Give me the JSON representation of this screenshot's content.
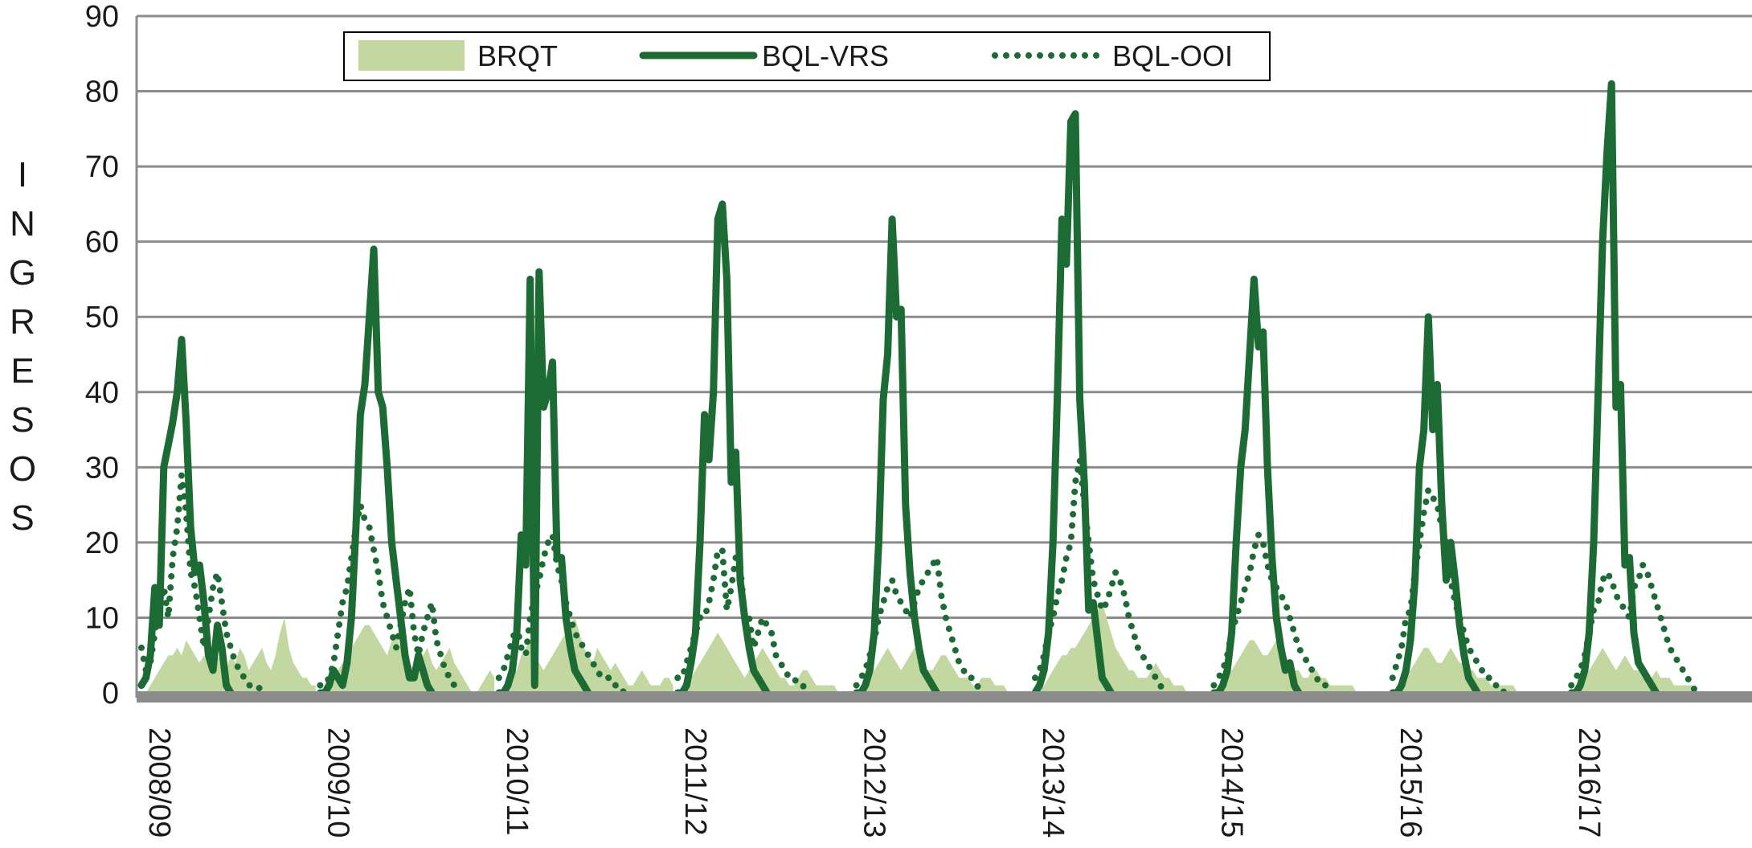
{
  "chart_data": {
    "type": "line",
    "title": "",
    "xlabel": "",
    "ylabel": "INGRESOS",
    "ylim": [
      0,
      90
    ],
    "yticks": [
      0,
      10,
      20,
      30,
      40,
      50,
      60,
      70,
      80,
      90
    ],
    "grid": true,
    "legend_position": "top",
    "seasons": [
      "2008/09",
      "2009/10",
      "2010/11",
      "2011/12",
      "2012/13",
      "2013/14",
      "2014/15",
      "2015/16",
      "2016/17"
    ],
    "weeks_per_season": 40,
    "series": [
      {
        "name": "BRQT",
        "style": "area",
        "color": "#c2d8a0",
        "values": [
          [
            0,
            0,
            1,
            2,
            3,
            4,
            5,
            5,
            6,
            5,
            7,
            6,
            5,
            4,
            5,
            4,
            6,
            5,
            4,
            3,
            5,
            4,
            6,
            5,
            3,
            4,
            5,
            6,
            4,
            3,
            5,
            8,
            10,
            6,
            4,
            3,
            2,
            2,
            1,
            1
          ],
          [
            0,
            0,
            1,
            2,
            3,
            4,
            5,
            6,
            7,
            8,
            9,
            9,
            8,
            7,
            6,
            5,
            7,
            8,
            6,
            5,
            4,
            3,
            4,
            5,
            6,
            4,
            3,
            4,
            5,
            6,
            4,
            3,
            2,
            1,
            0,
            0,
            1,
            2,
            3,
            2
          ],
          [
            0,
            0,
            1,
            2,
            3,
            5,
            6,
            7,
            5,
            4,
            3,
            4,
            5,
            6,
            7,
            8,
            9,
            10,
            8,
            6,
            5,
            4,
            6,
            5,
            4,
            3,
            4,
            3,
            2,
            1,
            1,
            2,
            3,
            2,
            1,
            1,
            1,
            2,
            2,
            1
          ],
          [
            0,
            0,
            1,
            2,
            3,
            4,
            5,
            6,
            7,
            8,
            7,
            6,
            5,
            4,
            3,
            2,
            3,
            4,
            5,
            6,
            5,
            4,
            3,
            2,
            2,
            1,
            1,
            2,
            3,
            3,
            2,
            1,
            1,
            1,
            1,
            1,
            0,
            0,
            0,
            0
          ],
          [
            0,
            0,
            1,
            2,
            3,
            4,
            5,
            6,
            5,
            4,
            3,
            4,
            5,
            6,
            5,
            4,
            3,
            3,
            4,
            5,
            5,
            4,
            3,
            2,
            2,
            2,
            1,
            1,
            2,
            2,
            2,
            1,
            1,
            1,
            0,
            0,
            0,
            0,
            0,
            0
          ],
          [
            0,
            0,
            1,
            2,
            3,
            4,
            5,
            5,
            6,
            6,
            7,
            8,
            9,
            10,
            11,
            12,
            10,
            8,
            6,
            5,
            4,
            3,
            3,
            2,
            2,
            2,
            3,
            4,
            3,
            2,
            2,
            1,
            1,
            1,
            0,
            0,
            0,
            0,
            0,
            0
          ],
          [
            0,
            0,
            1,
            2,
            3,
            4,
            5,
            6,
            7,
            7,
            6,
            5,
            5,
            6,
            7,
            6,
            5,
            4,
            3,
            3,
            2,
            2,
            3,
            3,
            2,
            2,
            1,
            1,
            1,
            1,
            1,
            1,
            0,
            0,
            0,
            0,
            0,
            0,
            0,
            0
          ],
          [
            0,
            0,
            1,
            2,
            3,
            4,
            5,
            6,
            6,
            5,
            4,
            4,
            5,
            6,
            5,
            4,
            4,
            3,
            3,
            2,
            2,
            2,
            1,
            1,
            1,
            1,
            1,
            1,
            0,
            0,
            0,
            0,
            0,
            0,
            0,
            0,
            0,
            0,
            0,
            0
          ],
          [
            0,
            0,
            1,
            2,
            3,
            4,
            5,
            6,
            5,
            4,
            3,
            4,
            5,
            4,
            3,
            3,
            2,
            2,
            2,
            3,
            2,
            2,
            2,
            1,
            1,
            1,
            1,
            1,
            0,
            0,
            0,
            0,
            0,
            0,
            0,
            0,
            0,
            0,
            0,
            0
          ]
        ]
      },
      {
        "name": "BQL-VRS",
        "style": "solid",
        "color": "#1d6b34",
        "values": [
          [
            1,
            2,
            5,
            14,
            9,
            30,
            33,
            36,
            40,
            47,
            36,
            22,
            16,
            17,
            12,
            5,
            3,
            9,
            6,
            1,
            0,
            0,
            0,
            0,
            0,
            0,
            0,
            0,
            0,
            0,
            0,
            0,
            0,
            0,
            0,
            0,
            0,
            0,
            0,
            0
          ],
          [
            0,
            0,
            1,
            3,
            2,
            1,
            4,
            10,
            22,
            37,
            41,
            50,
            59,
            40,
            38,
            30,
            20,
            15,
            10,
            5,
            2,
            2,
            5,
            3,
            1,
            0,
            0,
            0,
            0,
            0,
            0,
            0,
            0,
            0,
            0,
            0,
            0,
            0,
            0,
            0
          ],
          [
            0,
            0,
            1,
            3,
            8,
            21,
            17,
            55,
            1,
            56,
            38,
            40,
            44,
            18,
            18,
            10,
            6,
            3,
            2,
            1,
            0,
            0,
            0,
            0,
            0,
            0,
            0,
            0,
            0,
            0,
            0,
            0,
            0,
            0,
            0,
            0,
            0,
            0,
            0,
            0
          ],
          [
            0,
            0,
            1,
            4,
            8,
            20,
            37,
            31,
            40,
            63,
            65,
            55,
            28,
            32,
            15,
            10,
            6,
            3,
            2,
            1,
            0,
            0,
            0,
            0,
            0,
            0,
            0,
            0,
            0,
            0,
            0,
            0,
            0,
            0,
            0,
            0,
            0,
            0,
            0,
            0
          ],
          [
            0,
            0,
            1,
            3,
            8,
            20,
            39,
            45,
            63,
            50,
            51,
            25,
            16,
            10,
            6,
            3,
            2,
            1,
            0,
            0,
            0,
            0,
            0,
            0,
            0,
            0,
            0,
            0,
            0,
            0,
            0,
            0,
            0,
            0,
            0,
            0,
            0,
            0,
            0,
            0
          ],
          [
            0,
            1,
            3,
            8,
            20,
            40,
            63,
            57,
            76,
            77,
            39,
            28,
            11,
            12,
            7,
            2,
            1,
            0,
            0,
            0,
            0,
            0,
            0,
            0,
            0,
            0,
            0,
            0,
            0,
            0,
            0,
            0,
            0,
            0,
            0,
            0,
            0,
            0,
            0,
            0
          ],
          [
            0,
            0,
            1,
            3,
            8,
            20,
            30,
            35,
            45,
            55,
            46,
            48,
            30,
            18,
            10,
            6,
            3,
            4,
            1,
            0,
            0,
            0,
            0,
            0,
            0,
            0,
            0,
            0,
            0,
            0,
            0,
            0,
            0,
            0,
            0,
            0,
            0,
            0,
            0,
            0
          ],
          [
            0,
            0,
            1,
            3,
            7,
            15,
            30,
            35,
            50,
            35,
            41,
            25,
            15,
            20,
            15,
            9,
            5,
            2,
            1,
            0,
            0,
            0,
            0,
            0,
            0,
            0,
            0,
            0,
            0,
            0,
            0,
            0,
            0,
            0,
            0,
            0,
            0,
            0,
            0,
            0
          ],
          [
            0,
            0,
            1,
            3,
            8,
            20,
            40,
            60,
            72,
            81,
            38,
            41,
            17,
            18,
            8,
            4,
            3,
            2,
            1,
            0,
            0,
            0,
            0,
            0,
            0,
            0,
            0,
            0,
            0,
            0,
            0,
            0,
            0,
            0,
            0,
            0,
            0,
            0,
            0,
            0
          ]
        ]
      },
      {
        "name": "BQL-OOI",
        "style": "dotted",
        "color": "#1d6b34",
        "values": [
          [
            6,
            3,
            4,
            8,
            12,
            14,
            10,
            18,
            22,
            29,
            24,
            16,
            14,
            10,
            6,
            10,
            14,
            16,
            12,
            8,
            6,
            4,
            3,
            2,
            1,
            1,
            1,
            0,
            0,
            0,
            0,
            0,
            0,
            0,
            0,
            0,
            0,
            0,
            0,
            0
          ],
          [
            1,
            1,
            2,
            4,
            8,
            12,
            14,
            18,
            22,
            25,
            23,
            22,
            19,
            16,
            12,
            10,
            8,
            6,
            9,
            12,
            14,
            8,
            5,
            8,
            10,
            12,
            7,
            5,
            3,
            2,
            1,
            0,
            0,
            0,
            0,
            0,
            0,
            0,
            0,
            0
          ],
          [
            2,
            3,
            5,
            7,
            9,
            6,
            5,
            10,
            13,
            15,
            18,
            20,
            21,
            17,
            15,
            12,
            10,
            8,
            7,
            6,
            5,
            4,
            3,
            2,
            2,
            2,
            1,
            1,
            0,
            0,
            0,
            0,
            0,
            0,
            0,
            0,
            0,
            0,
            0,
            0
          ],
          [
            2,
            2,
            4,
            6,
            8,
            10,
            10,
            12,
            15,
            19,
            19,
            11,
            14,
            18,
            17,
            10,
            10,
            6,
            8,
            10,
            9,
            8,
            5,
            4,
            3,
            2,
            2,
            1,
            1,
            0,
            0,
            0,
            0,
            0,
            0,
            0,
            0,
            0,
            0,
            0
          ],
          [
            1,
            2,
            3,
            5,
            7,
            10,
            12,
            14,
            15,
            13,
            12,
            11,
            10,
            12,
            14,
            15,
            16,
            17,
            18,
            13,
            10,
            8,
            6,
            4,
            3,
            2,
            2,
            1,
            0,
            0,
            0,
            0,
            0,
            0,
            0,
            0,
            0,
            0,
            0,
            0
          ],
          [
            2,
            3,
            5,
            8,
            10,
            13,
            15,
            18,
            20,
            28,
            31,
            25,
            20,
            15,
            13,
            11,
            12,
            14,
            16,
            15,
            13,
            10,
            8,
            6,
            5,
            4,
            3,
            2,
            1,
            0,
            0,
            0,
            0,
            0,
            0,
            0,
            0,
            0,
            0,
            0
          ],
          [
            1,
            2,
            3,
            5,
            8,
            10,
            12,
            14,
            16,
            19,
            21,
            20,
            17,
            15,
            14,
            13,
            12,
            10,
            8,
            6,
            5,
            4,
            3,
            2,
            1,
            1,
            0,
            0,
            0,
            0,
            0,
            0,
            0,
            0,
            0,
            0,
            0,
            0,
            0,
            0
          ],
          [
            2,
            4,
            6,
            10,
            11,
            16,
            20,
            24,
            27,
            26,
            25,
            22,
            20,
            15,
            12,
            10,
            8,
            6,
            5,
            4,
            3,
            2,
            2,
            1,
            1,
            0,
            0,
            0,
            0,
            0,
            0,
            0,
            0,
            0,
            0,
            0,
            0,
            0,
            0,
            0
          ],
          [
            1,
            2,
            3,
            5,
            8,
            11,
            12,
            15,
            16,
            15,
            13,
            12,
            11,
            10,
            14,
            15,
            17,
            16,
            14,
            12,
            10,
            8,
            6,
            5,
            4,
            3,
            2,
            1,
            0,
            0,
            0,
            0,
            0,
            0,
            0,
            0,
            0,
            0,
            0,
            0
          ]
        ]
      }
    ]
  }
}
